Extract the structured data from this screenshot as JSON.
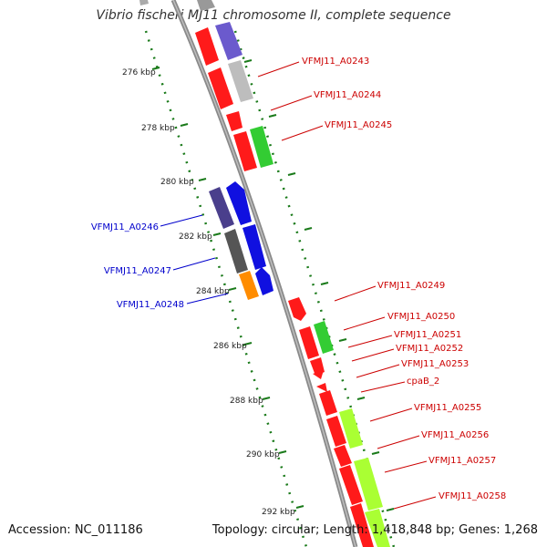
{
  "header": {
    "title": "Vibrio fischeri MJ11 chromosome II, complete sequence"
  },
  "footer": {
    "accession": "Accession: NC_011186",
    "topology": "Topology: circular; Length: 1,418,848 bp; Genes: 1,268"
  },
  "ruler": {
    "ticks": [
      "276 kbp",
      "278 kbp",
      "280 kbp",
      "282 kbp",
      "284 kbp",
      "286 kbp",
      "288 kbp",
      "290 kbp",
      "292 kbp"
    ]
  },
  "colors": {
    "backbone": "#8a8a8a",
    "forward_label": "#cc0000",
    "reverse_label": "#0000cc",
    "tick": "#1a7a1a"
  },
  "forward_labels": [
    "VFMJ11_A0243",
    "VFMJ11_A0244",
    "VFMJ11_A0245",
    "VFMJ11_A0249",
    "VFMJ11_A0250",
    "VFMJ11_A0251",
    "VFMJ11_A0252",
    "VFMJ11_A0253",
    "cpaB_2",
    "VFMJ11_A0255",
    "VFMJ11_A0256",
    "VFMJ11_A0257",
    "VFMJ11_A0258"
  ],
  "reverse_labels": [
    "VFMJ11_A0246",
    "VFMJ11_A0247",
    "VFMJ11_A0248"
  ]
}
